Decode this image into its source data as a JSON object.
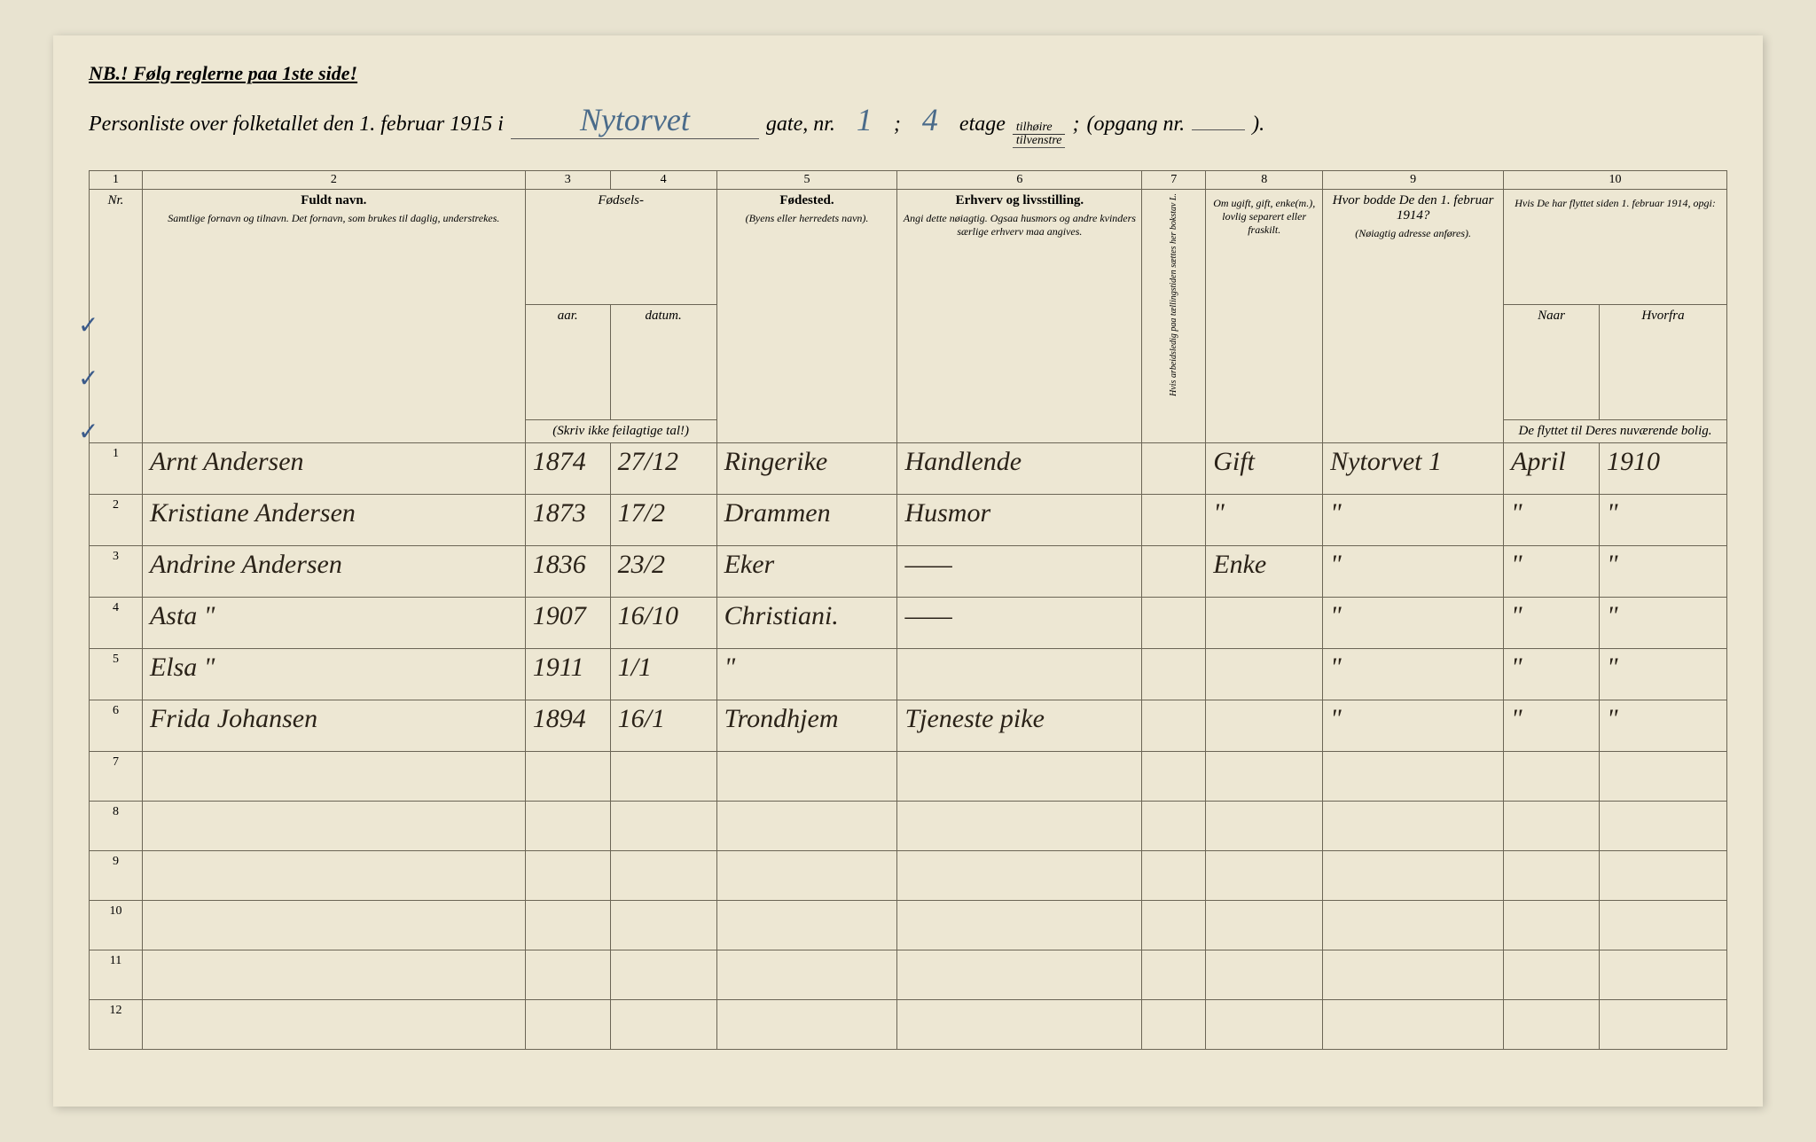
{
  "header": {
    "nb": "NB.! Følg reglerne paa 1ste side!",
    "title_prefix": "Personliste over folketallet den 1. februar 1915 i",
    "street": "Nytorvet",
    "gate_label": "gate, nr.",
    "nr": "1",
    "semicolon": ";",
    "etage": "4",
    "etage_label": "etage",
    "frac_top": "tilhøire",
    "frac_bot": "tilvenstre",
    "opgang": "(opgang nr.",
    "opgang_end": ")."
  },
  "columns": {
    "numbers": [
      "1",
      "2",
      "3",
      "4",
      "5",
      "6",
      "7",
      "8",
      "9",
      "10"
    ],
    "c1": "Nr.",
    "c2_title": "Fuldt navn.",
    "c2_sub": "Samtlige fornavn og tilnavn. Det fornavn, som brukes til daglig, understrekes.",
    "c34_title": "Fødsels-",
    "c3": "aar.",
    "c4": "datum.",
    "c34_sub": "(Skriv ikke feilagtige tal!)",
    "c5_title": "Fødested.",
    "c5_sub": "(Byens eller herredets navn).",
    "c6_title": "Erhverv og livsstilling.",
    "c6_sub": "Angi dette nøiagtig. Ogsaa husmors og andre kvinders særlige erhverv maa angives.",
    "c7": "Hvis arbeidsledig paa tællingstiden sættes her bokstav L.",
    "c8": "Om ugift, gift, enke(m.), lovlig separert eller fraskilt.",
    "c9_title": "Hvor bodde De den 1. februar 1914?",
    "c9_sub": "(Nøiagtig adresse anføres).",
    "c10_title": "Hvis De har flyttet siden 1. februar 1914, opgi:",
    "c10a": "Naar",
    "c10b": "Hvorfra",
    "c10_sub": "De flyttet til Deres nuværende bolig."
  },
  "rows": [
    {
      "nr": "1",
      "name": "Arnt Andersen",
      "year": "1874",
      "date": "27/12",
      "birthplace": "Ringerike",
      "occupation": "Handlende",
      "col7": "",
      "marital": "Gift",
      "prev": "Nytorvet 1",
      "when": "April",
      "from": "1910"
    },
    {
      "nr": "2",
      "name": "Kristiane Andersen",
      "year": "1873",
      "date": "17/2",
      "birthplace": "Drammen",
      "occupation": "Husmor",
      "col7": "",
      "marital": "\"",
      "prev": "\"",
      "when": "\"",
      "from": "\""
    },
    {
      "nr": "3",
      "name": "Andrine Andersen",
      "year": "1836",
      "date": "23/2",
      "birthplace": "Eker",
      "occupation": "——",
      "col7": "",
      "marital": "Enke",
      "prev": "\"",
      "when": "\"",
      "from": "\""
    },
    {
      "nr": "4",
      "name": "Asta        \"",
      "year": "1907",
      "date": "16/10",
      "birthplace": "Christiani.",
      "occupation": "——",
      "col7": "",
      "marital": "",
      "prev": "\"",
      "when": "\"",
      "from": "\""
    },
    {
      "nr": "5",
      "name": "Elsa        \"",
      "year": "1911",
      "date": "1/1",
      "birthplace": "\"",
      "occupation": "",
      "col7": "",
      "marital": "",
      "prev": "\"",
      "when": "\"",
      "from": "\""
    },
    {
      "nr": "6",
      "name": "Frida   Johansen",
      "year": "1894",
      "date": "16/1",
      "birthplace": "Trondhjem",
      "occupation": "Tjeneste pike",
      "col7": "",
      "marital": "",
      "prev": "\"",
      "when": "\"",
      "from": "\""
    }
  ],
  "empty_rows": [
    "7",
    "8",
    "9",
    "10",
    "11",
    "12"
  ],
  "colors": {
    "paper": "#ede7d3",
    "ink": "#2a2218",
    "blue_ink": "#4a6b8a",
    "border": "#6b6555"
  }
}
